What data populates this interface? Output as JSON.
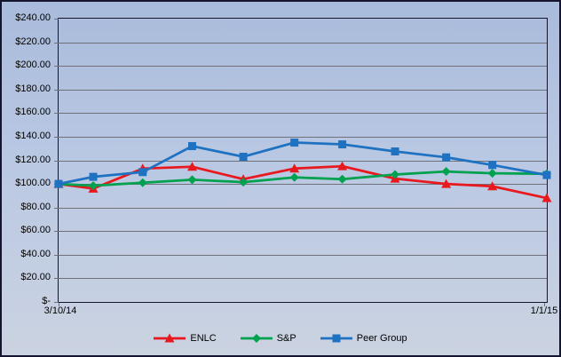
{
  "chart_data": {
    "type": "line",
    "title": "",
    "description": "Comparative total return performance chart, indexed to $100",
    "x_axis": {
      "visible_tick_labels": [
        "3/10/14",
        "1/1/15"
      ],
      "x_days_from_start": [
        0,
        21,
        51,
        81,
        112,
        143,
        172,
        204,
        235,
        263,
        296
      ],
      "total_days": 296,
      "note": "11 points; only first and last x ticks are labeled"
    },
    "y_axis": {
      "min": 0,
      "max": 240,
      "step": 20,
      "tick_labels_top_to_bottom": [
        "$240.00",
        "$220.00",
        "$200.00",
        "$180.00",
        "$160.00",
        "$140.00",
        "$120.00",
        "$100.00",
        "$80.00",
        "$60.00",
        "$40.00",
        "$20.00",
        "$-"
      ]
    },
    "grid": true,
    "legend_position": "bottom-center",
    "series": [
      {
        "name": "ENLC",
        "color": "#E8191E",
        "marker": "triangle",
        "values": [
          100,
          96,
          113,
          114.5,
          104,
          113,
          115,
          104.5,
          100,
          98,
          88
        ]
      },
      {
        "name": "S&P",
        "color": "#00A14F",
        "marker": "diamond",
        "values": [
          100,
          98.5,
          101,
          103.5,
          101.5,
          105.5,
          104,
          108,
          110.5,
          109,
          108.5
        ]
      },
      {
        "name": "Peer Group",
        "color": "#1F72C1",
        "marker": "square",
        "values": [
          100,
          106,
          110,
          132,
          123,
          135,
          133.5,
          127.5,
          122.5,
          116,
          107.5
        ]
      }
    ]
  },
  "frame": {
    "background_top": "#a9bbdb",
    "background_mid": "#b9c8e3",
    "background_bottom": "#cbd3e1",
    "border_color": "#15152f",
    "gridline_color": "#70707a",
    "text_color": "#000000"
  }
}
